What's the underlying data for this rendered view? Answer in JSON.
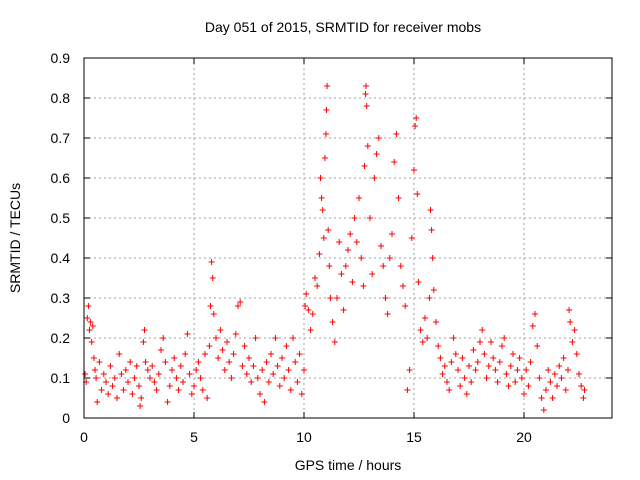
{
  "chart_data": {
    "type": "scatter",
    "title": "Day 051 of 2015, SRMTID for receiver mobs",
    "xlabel": "GPS time / hours",
    "ylabel": "SRMTID / TECUs",
    "xlim": [
      0,
      24
    ],
    "ylim": [
      0,
      0.9
    ],
    "xticks": [
      0,
      5,
      10,
      15,
      20
    ],
    "xtick_labels": [
      "0",
      "5",
      "10",
      "15",
      "20"
    ],
    "yticks": [
      0,
      0.1,
      0.2,
      0.3,
      0.4,
      0.5,
      0.6,
      0.7,
      0.8,
      0.9
    ],
    "ytick_labels": [
      "0",
      "0.1",
      "0.2",
      "0.3",
      "0.4",
      "0.5",
      "0.6",
      "0.7",
      "0.8",
      "0.9"
    ],
    "grid": true,
    "marker": "+",
    "color": "#ff0000",
    "series": [
      {
        "name": "mobs",
        "points": [
          [
            0.05,
            0.11
          ],
          [
            0.1,
            0.09
          ],
          [
            0.15,
            0.25
          ],
          [
            0.2,
            0.28
          ],
          [
            0.25,
            0.22
          ],
          [
            0.3,
            0.24
          ],
          [
            0.35,
            0.19
          ],
          [
            0.4,
            0.23
          ],
          [
            0.45,
            0.15
          ],
          [
            0.5,
            0.12
          ],
          [
            0.55,
            0.1
          ],
          [
            0.6,
            0.04
          ],
          [
            0.7,
            0.14
          ],
          [
            0.8,
            0.07
          ],
          [
            0.9,
            0.11
          ],
          [
            1.0,
            0.09
          ],
          [
            1.1,
            0.06
          ],
          [
            1.2,
            0.13
          ],
          [
            1.3,
            0.08
          ],
          [
            1.4,
            0.1
          ],
          [
            1.5,
            0.05
          ],
          [
            1.6,
            0.16
          ],
          [
            1.7,
            0.11
          ],
          [
            1.8,
            0.07
          ],
          [
            1.9,
            0.12
          ],
          [
            2.0,
            0.09
          ],
          [
            2.1,
            0.14
          ],
          [
            2.2,
            0.06
          ],
          [
            2.3,
            0.1
          ],
          [
            2.4,
            0.13
          ],
          [
            2.5,
            0.08
          ],
          [
            2.55,
            0.03
          ],
          [
            2.6,
            0.05
          ],
          [
            2.7,
            0.19
          ],
          [
            2.75,
            0.22
          ],
          [
            2.8,
            0.14
          ],
          [
            2.9,
            0.12
          ],
          [
            3.0,
            0.1
          ],
          [
            3.1,
            0.13
          ],
          [
            3.2,
            0.09
          ],
          [
            3.3,
            0.07
          ],
          [
            3.4,
            0.11
          ],
          [
            3.5,
            0.17
          ],
          [
            3.6,
            0.2
          ],
          [
            3.7,
            0.14
          ],
          [
            3.8,
            0.04
          ],
          [
            3.9,
            0.08
          ],
          [
            4.0,
            0.12
          ],
          [
            4.1,
            0.15
          ],
          [
            4.2,
            0.1
          ],
          [
            4.3,
            0.07
          ],
          [
            4.4,
            0.13
          ],
          [
            4.5,
            0.09
          ],
          [
            4.6,
            0.16
          ],
          [
            4.7,
            0.21
          ],
          [
            4.8,
            0.11
          ],
          [
            4.9,
            0.06
          ],
          [
            5.0,
            0.08
          ],
          [
            5.1,
            0.12
          ],
          [
            5.2,
            0.14
          ],
          [
            5.3,
            0.1
          ],
          [
            5.4,
            0.07
          ],
          [
            5.5,
            0.16
          ],
          [
            5.6,
            0.05
          ],
          [
            5.7,
            0.18
          ],
          [
            5.75,
            0.28
          ],
          [
            5.8,
            0.39
          ],
          [
            5.85,
            0.35
          ],
          [
            5.9,
            0.26
          ],
          [
            6.0,
            0.2
          ],
          [
            6.1,
            0.15
          ],
          [
            6.2,
            0.22
          ],
          [
            6.3,
            0.17
          ],
          [
            6.4,
            0.12
          ],
          [
            6.5,
            0.19
          ],
          [
            6.6,
            0.14
          ],
          [
            6.7,
            0.1
          ],
          [
            6.8,
            0.16
          ],
          [
            6.9,
            0.21
          ],
          [
            7.0,
            0.28
          ],
          [
            7.1,
            0.29
          ],
          [
            7.2,
            0.13
          ],
          [
            7.3,
            0.18
          ],
          [
            7.4,
            0.11
          ],
          [
            7.5,
            0.15
          ],
          [
            7.6,
            0.09
          ],
          [
            7.7,
            0.13
          ],
          [
            7.8,
            0.2
          ],
          [
            7.9,
            0.1
          ],
          [
            8.0,
            0.06
          ],
          [
            8.1,
            0.12
          ],
          [
            8.2,
            0.04
          ],
          [
            8.3,
            0.14
          ],
          [
            8.4,
            0.09
          ],
          [
            8.5,
            0.16
          ],
          [
            8.6,
            0.11
          ],
          [
            8.7,
            0.2
          ],
          [
            8.8,
            0.13
          ],
          [
            8.9,
            0.08
          ],
          [
            9.0,
            0.15
          ],
          [
            9.1,
            0.1
          ],
          [
            9.2,
            0.18
          ],
          [
            9.3,
            0.12
          ],
          [
            9.4,
            0.07
          ],
          [
            9.5,
            0.2
          ],
          [
            9.6,
            0.14
          ],
          [
            9.7,
            0.09
          ],
          [
            9.8,
            0.16
          ],
          [
            9.9,
            0.06
          ],
          [
            10.0,
            0.12
          ],
          [
            10.05,
            0.28
          ],
          [
            10.1,
            0.31
          ],
          [
            10.2,
            0.27
          ],
          [
            10.3,
            0.22
          ],
          [
            10.4,
            0.26
          ],
          [
            10.5,
            0.35
          ],
          [
            10.6,
            0.33
          ],
          [
            10.7,
            0.41
          ],
          [
            10.75,
            0.6
          ],
          [
            10.8,
            0.55
          ],
          [
            10.85,
            0.52
          ],
          [
            10.9,
            0.45
          ],
          [
            10.95,
            0.65
          ],
          [
            11.0,
            0.71
          ],
          [
            11.02,
            0.77
          ],
          [
            11.05,
            0.83
          ],
          [
            11.1,
            0.47
          ],
          [
            11.15,
            0.38
          ],
          [
            11.2,
            0.3
          ],
          [
            11.3,
            0.24
          ],
          [
            11.4,
            0.19
          ],
          [
            11.5,
            0.3
          ],
          [
            11.6,
            0.44
          ],
          [
            11.7,
            0.36
          ],
          [
            11.8,
            0.27
          ],
          [
            11.9,
            0.38
          ],
          [
            12.0,
            0.42
          ],
          [
            12.1,
            0.46
          ],
          [
            12.2,
            0.34
          ],
          [
            12.3,
            0.5
          ],
          [
            12.4,
            0.44
          ],
          [
            12.5,
            0.55
          ],
          [
            12.6,
            0.4
          ],
          [
            12.7,
            0.33
          ],
          [
            12.75,
            0.63
          ],
          [
            12.8,
            0.81
          ],
          [
            12.82,
            0.83
          ],
          [
            12.85,
            0.78
          ],
          [
            12.9,
            0.68
          ],
          [
            13.0,
            0.5
          ],
          [
            13.1,
            0.36
          ],
          [
            13.2,
            0.6
          ],
          [
            13.3,
            0.66
          ],
          [
            13.4,
            0.7
          ],
          [
            13.5,
            0.43
          ],
          [
            13.6,
            0.38
          ],
          [
            13.7,
            0.3
          ],
          [
            13.8,
            0.26
          ],
          [
            13.9,
            0.4
          ],
          [
            14.0,
            0.46
          ],
          [
            14.1,
            0.64
          ],
          [
            14.2,
            0.71
          ],
          [
            14.3,
            0.55
          ],
          [
            14.4,
            0.38
          ],
          [
            14.5,
            0.33
          ],
          [
            14.6,
            0.28
          ],
          [
            14.7,
            0.07
          ],
          [
            14.8,
            0.12
          ],
          [
            14.9,
            0.45
          ],
          [
            15.0,
            0.62
          ],
          [
            15.05,
            0.73
          ],
          [
            15.1,
            0.75
          ],
          [
            15.15,
            0.56
          ],
          [
            15.2,
            0.34
          ],
          [
            15.3,
            0.22
          ],
          [
            15.4,
            0.19
          ],
          [
            15.5,
            0.25
          ],
          [
            15.6,
            0.2
          ],
          [
            15.7,
            0.3
          ],
          [
            15.75,
            0.52
          ],
          [
            15.8,
            0.47
          ],
          [
            15.85,
            0.4
          ],
          [
            15.9,
            0.32
          ],
          [
            16.0,
            0.24
          ],
          [
            16.1,
            0.18
          ],
          [
            16.2,
            0.15
          ],
          [
            16.3,
            0.11
          ],
          [
            16.4,
            0.13
          ],
          [
            16.5,
            0.09
          ],
          [
            16.6,
            0.07
          ],
          [
            16.7,
            0.14
          ],
          [
            16.8,
            0.2
          ],
          [
            16.9,
            0.16
          ],
          [
            17.0,
            0.12
          ],
          [
            17.1,
            0.08
          ],
          [
            17.2,
            0.15
          ],
          [
            17.3,
            0.1
          ],
          [
            17.4,
            0.06
          ],
          [
            17.5,
            0.13
          ],
          [
            17.6,
            0.09
          ],
          [
            17.7,
            0.17
          ],
          [
            17.8,
            0.12
          ],
          [
            17.9,
            0.14
          ],
          [
            18.0,
            0.19
          ],
          [
            18.1,
            0.22
          ],
          [
            18.2,
            0.16
          ],
          [
            18.3,
            0.1
          ],
          [
            18.4,
            0.13
          ],
          [
            18.5,
            0.19
          ],
          [
            18.6,
            0.15
          ],
          [
            18.7,
            0.12
          ],
          [
            18.8,
            0.09
          ],
          [
            18.9,
            0.14
          ],
          [
            19.0,
            0.18
          ],
          [
            19.1,
            0.2
          ],
          [
            19.2,
            0.11
          ],
          [
            19.3,
            0.08
          ],
          [
            19.4,
            0.13
          ],
          [
            19.5,
            0.16
          ],
          [
            19.6,
            0.09
          ],
          [
            19.7,
            0.12
          ],
          [
            19.8,
            0.15
          ],
          [
            19.9,
            0.1
          ],
          [
            20.0,
            0.06
          ],
          [
            20.1,
            0.12
          ],
          [
            20.2,
            0.08
          ],
          [
            20.3,
            0.14
          ],
          [
            20.4,
            0.23
          ],
          [
            20.5,
            0.26
          ],
          [
            20.6,
            0.18
          ],
          [
            20.7,
            0.1
          ],
          [
            20.8,
            0.05
          ],
          [
            20.9,
            0.02
          ],
          [
            21.0,
            0.07
          ],
          [
            21.1,
            0.12
          ],
          [
            21.2,
            0.09
          ],
          [
            21.3,
            0.05
          ],
          [
            21.4,
            0.11
          ],
          [
            21.5,
            0.08
          ],
          [
            21.6,
            0.13
          ],
          [
            21.7,
            0.1
          ],
          [
            21.8,
            0.15
          ],
          [
            21.9,
            0.07
          ],
          [
            22.0,
            0.12
          ],
          [
            22.05,
            0.27
          ],
          [
            22.1,
            0.24
          ],
          [
            22.2,
            0.19
          ],
          [
            22.3,
            0.22
          ],
          [
            22.4,
            0.16
          ],
          [
            22.5,
            0.11
          ],
          [
            22.6,
            0.08
          ],
          [
            22.7,
            0.05
          ],
          [
            22.75,
            0.07
          ]
        ]
      }
    ]
  }
}
